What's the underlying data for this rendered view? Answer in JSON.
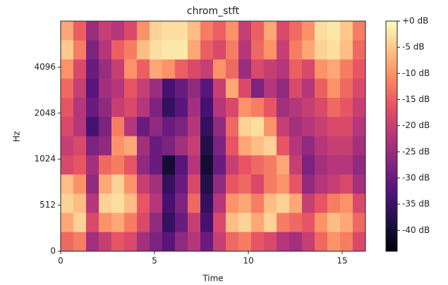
{
  "chart_data": {
    "type": "heatmap",
    "title": "chrom_stft",
    "xlabel": "Time",
    "ylabel": "Hz",
    "xlim": [
      0,
      16.24
    ],
    "xticks": [
      0,
      5,
      10,
      15
    ],
    "ylim": [
      0,
      8192
    ],
    "yticks": [
      0,
      512,
      1024,
      2048,
      4096
    ],
    "yscale": "symlog",
    "linthresh": 512,
    "base": 2,
    "colormap": "magma",
    "clim": [
      -44,
      0
    ],
    "cticks": [
      {
        "value": 0,
        "label": "+0 dB"
      },
      {
        "value": -5,
        "label": "-5 dB"
      },
      {
        "value": -10,
        "label": "-10 dB"
      },
      {
        "value": -15,
        "label": "-15 dB"
      },
      {
        "value": -20,
        "label": "-20 dB"
      },
      {
        "value": -25,
        "label": "-25 dB"
      },
      {
        "value": -30,
        "label": "-30 dB"
      },
      {
        "value": -35,
        "label": "-35 dB"
      },
      {
        "value": -40,
        "label": "-40 dB"
      }
    ],
    "z": [
      [
        -8,
        -15,
        -25,
        -20,
        -22,
        -18,
        -10,
        -4,
        -3,
        -3,
        -6,
        -12,
        -15,
        -10,
        -20,
        -15,
        -8,
        -18,
        -14,
        -10,
        -3,
        -2,
        -5,
        -12
      ],
      [
        -5,
        -12,
        -28,
        -22,
        -15,
        -12,
        -6,
        -3,
        -2,
        -2,
        -8,
        -15,
        -18,
        -12,
        -22,
        -14,
        -10,
        -20,
        -12,
        -8,
        -4,
        -3,
        -6,
        -14
      ],
      [
        -10,
        -18,
        -30,
        -25,
        -20,
        -10,
        -15,
        -8,
        -10,
        -15,
        -18,
        -20,
        -10,
        -14,
        -25,
        -18,
        -20,
        -22,
        -15,
        -18,
        -10,
        -8,
        -12,
        -16
      ],
      [
        -14,
        -20,
        -32,
        -24,
        -22,
        -16,
        -20,
        -25,
        -34,
        -30,
        -26,
        -32,
        -20,
        -8,
        -18,
        -28,
        -22,
        -26,
        -18,
        -22,
        -15,
        -10,
        -14,
        -18
      ],
      [
        -16,
        -22,
        -30,
        -26,
        -20,
        -18,
        -22,
        -28,
        -36,
        -32,
        -24,
        -34,
        -22,
        -18,
        -10,
        -12,
        -16,
        -24,
        -22,
        -20,
        -18,
        -14,
        -16,
        -20
      ],
      [
        -18,
        -22,
        -34,
        -28,
        -12,
        -22,
        -30,
        -26,
        -30,
        -28,
        -22,
        -36,
        -26,
        -14,
        -4,
        -3,
        -10,
        -20,
        -24,
        -22,
        -20,
        -18,
        -18,
        -22
      ],
      [
        -20,
        -18,
        -28,
        -26,
        -10,
        -8,
        -24,
        -30,
        -28,
        -24,
        -20,
        -38,
        -28,
        -16,
        -8,
        -6,
        -4,
        -16,
        -22,
        -26,
        -22,
        -20,
        -20,
        -24
      ],
      [
        -18,
        -16,
        -24,
        -14,
        -12,
        -16,
        -26,
        -30,
        -40,
        -32,
        -22,
        -40,
        -30,
        -20,
        -16,
        -14,
        -12,
        -8,
        -20,
        -28,
        -24,
        -22,
        -22,
        -26
      ],
      [
        -6,
        -10,
        -26,
        -8,
        -4,
        -10,
        -20,
        -24,
        -36,
        -30,
        -18,
        -38,
        -26,
        -16,
        -14,
        -18,
        -12,
        -10,
        -16,
        -26,
        -22,
        -20,
        -18,
        -24
      ],
      [
        -4,
        -6,
        -22,
        -4,
        -3,
        -6,
        -16,
        -22,
        -34,
        -28,
        -14,
        -36,
        -22,
        -10,
        -8,
        -12,
        -6,
        -4,
        -8,
        -20,
        -16,
        -12,
        -10,
        -18
      ],
      [
        -8,
        -4,
        -18,
        -10,
        -8,
        -12,
        -18,
        -26,
        -36,
        -30,
        -20,
        -34,
        -18,
        -6,
        -4,
        -8,
        -4,
        -12,
        -14,
        -16,
        -10,
        -6,
        -8,
        -14
      ],
      [
        -14,
        -12,
        -24,
        -20,
        -16,
        -18,
        -24,
        -28,
        -32,
        -26,
        -22,
        -30,
        -20,
        -14,
        -12,
        -16,
        -18,
        -22,
        -24,
        -20,
        -14,
        -10,
        -12,
        -18
      ]
    ]
  }
}
